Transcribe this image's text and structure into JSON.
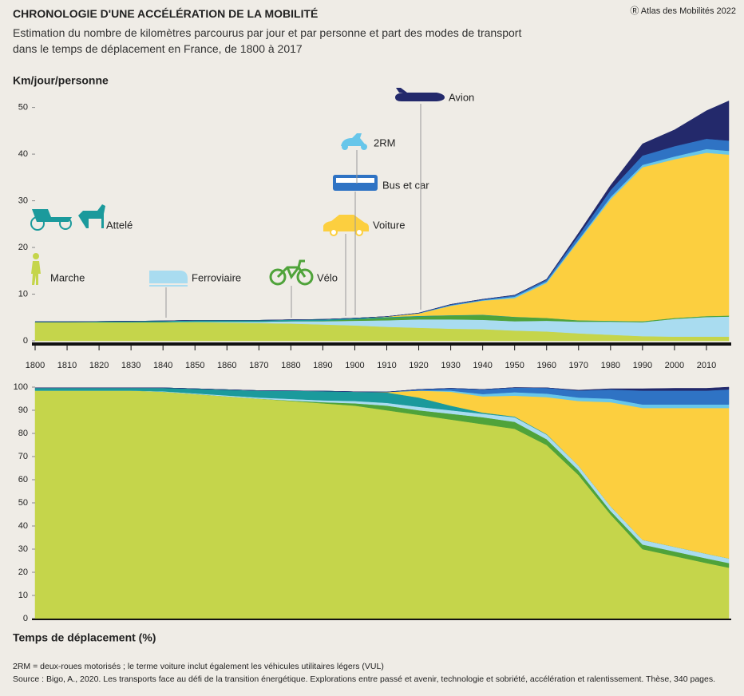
{
  "header": {
    "title": "CHRONOLOGIE D'UNE ACCÉLÉRATION DE LA MOBILITÉ",
    "subtitle": "Estimation du nombre de kilomètres parcourus par jour et par personne et part des modes de transport dans le temps de déplacement en France, de 1800 à 2017",
    "credit": "Atlas des Mobilités 2022"
  },
  "chart_data": [
    {
      "type": "stacked-area",
      "y_label": "Km/jour/personne",
      "x": [
        1800,
        1810,
        1820,
        1830,
        1840,
        1850,
        1860,
        1870,
        1880,
        1890,
        1900,
        1910,
        1920,
        1930,
        1940,
        1950,
        1960,
        1970,
        1980,
        1990,
        2000,
        2010,
        2017
      ],
      "xlim": [
        1800,
        2017
      ],
      "xticks": [
        1800,
        1810,
        1820,
        1830,
        1840,
        1850,
        1860,
        1870,
        1880,
        1890,
        1900,
        1910,
        1920,
        1930,
        1940,
        1950,
        1960,
        1970,
        1980,
        1990,
        2000,
        2010
      ],
      "ylim": [
        0,
        52.5
      ],
      "yticks": [
        0,
        10,
        20,
        30,
        40,
        50
      ],
      "series": [
        {
          "name": "Marche",
          "color": "#c5d54b",
          "values": [
            4,
            4,
            4,
            4,
            4,
            4,
            3.9,
            3.8,
            3.7,
            3.5,
            3.3,
            3.0,
            2.8,
            2.6,
            2.5,
            2.2,
            2.0,
            1.6,
            1.3,
            1.0,
            0.9,
            0.9,
            0.9
          ]
        },
        {
          "name": "Ferroviaire",
          "color": "#a9dcf0",
          "values": [
            0,
            0,
            0,
            0,
            0.02,
            0.1,
            0.2,
            0.3,
            0.5,
            0.7,
            1.0,
            1.4,
            1.8,
            2.0,
            2.0,
            2.0,
            2.3,
            2.5,
            2.8,
            3.0,
            3.8,
            4.2,
            4.3
          ]
        },
        {
          "name": "Vélo",
          "color": "#4fa33a",
          "values": [
            0,
            0,
            0,
            0,
            0,
            0,
            0,
            0,
            0.02,
            0.1,
            0.3,
            0.5,
            0.6,
            0.8,
            1.0,
            0.9,
            0.6,
            0.3,
            0.2,
            0.2,
            0.2,
            0.2,
            0.2
          ]
        },
        {
          "name": "Attelé",
          "color": "#1b9a9c",
          "values": [
            0.1,
            0.1,
            0.15,
            0.2,
            0.25,
            0.3,
            0.3,
            0.3,
            0.3,
            0.3,
            0.25,
            0.2,
            0.15,
            0.1,
            0.1,
            0.05,
            0,
            0,
            0,
            0,
            0,
            0,
            0
          ]
        },
        {
          "name": "Voiture",
          "color": "#fccf3f",
          "values": [
            0,
            0,
            0,
            0,
            0,
            0,
            0,
            0,
            0,
            0,
            0.01,
            0.1,
            0.5,
            2.0,
            3.0,
            4.0,
            7.5,
            17,
            26,
            33,
            34,
            35,
            34.5
          ]
        },
        {
          "name": "2RM",
          "color": "#67c6ea",
          "values": [
            0,
            0,
            0,
            0,
            0,
            0,
            0,
            0,
            0,
            0,
            0,
            0,
            0.05,
            0.1,
            0.1,
            0.3,
            0.3,
            0.3,
            0.5,
            0.5,
            0.6,
            0.8,
            0.8
          ]
        },
        {
          "name": "Bus et car",
          "color": "#2f73c4",
          "values": [
            0,
            0,
            0,
            0,
            0,
            0,
            0,
            0,
            0,
            0,
            0,
            0,
            0.05,
            0.2,
            0.2,
            0.3,
            0.4,
            0.9,
            1.5,
            2.0,
            2.2,
            2.2,
            2.2
          ]
        },
        {
          "name": "Avion",
          "color": "#23296b",
          "values": [
            0,
            0,
            0,
            0,
            0,
            0,
            0,
            0,
            0,
            0,
            0,
            0,
            0,
            0,
            0,
            0.05,
            0.1,
            0.5,
            1.0,
            2.5,
            3.5,
            6,
            8.5
          ]
        }
      ]
    },
    {
      "type": "stacked-area",
      "y_label": "Temps de déplacement (%)",
      "x": [
        1800,
        1810,
        1820,
        1830,
        1840,
        1850,
        1860,
        1870,
        1880,
        1890,
        1900,
        1910,
        1920,
        1930,
        1940,
        1950,
        1960,
        1970,
        1980,
        1990,
        2000,
        2010,
        2017
      ],
      "xlim": [
        1800,
        2017
      ],
      "ylim": [
        0,
        100
      ],
      "yticks": [
        0,
        10,
        20,
        30,
        40,
        50,
        60,
        70,
        80,
        90,
        100
      ],
      "series": [
        {
          "name": "Marche",
          "color": "#c5d54b",
          "values": [
            98.5,
            98.5,
            98.5,
            98.5,
            98,
            97,
            96,
            95,
            94,
            93,
            92,
            90,
            88,
            86,
            84,
            82,
            75,
            62,
            45,
            30,
            27,
            24,
            22
          ]
        },
        {
          "name": "Vélo",
          "color": "#4fa33a",
          "values": [
            0,
            0,
            0,
            0,
            0,
            0,
            0,
            0,
            0.2,
            0.5,
            1,
            2,
            2,
            2.5,
            3,
            3,
            2.5,
            2,
            1.5,
            2,
            2,
            2,
            2
          ]
        },
        {
          "name": "Ferroviaire",
          "color": "#a9dcf0",
          "values": [
            0,
            0,
            0,
            0,
            0.2,
            0.3,
            0.4,
            0.5,
            0.7,
            0.8,
            1,
            1.2,
            1.5,
            1.5,
            1.5,
            2,
            2,
            2,
            2,
            2,
            2,
            2,
            2
          ]
        },
        {
          "name": "Attelé",
          "color": "#1b9a9c",
          "values": [
            1.2,
            1.2,
            1.2,
            1.2,
            1.5,
            2,
            2.5,
            3,
            3.5,
            4,
            4,
            4.5,
            4,
            2,
            0.5,
            0.3,
            0.2,
            0,
            0,
            0,
            0,
            0,
            0
          ]
        },
        {
          "name": "Voiture",
          "color": "#fccf3f",
          "values": [
            0,
            0,
            0,
            0,
            0,
            0,
            0,
            0,
            0,
            0,
            0,
            0.2,
            3,
            6,
            7,
            9,
            16,
            28,
            45,
            57,
            60,
            63,
            65
          ]
        },
        {
          "name": "2RM",
          "color": "#67c6ea",
          "values": [
            0,
            0,
            0,
            0,
            0,
            0,
            0,
            0,
            0,
            0,
            0,
            0,
            0,
            0.5,
            1,
            1.5,
            1.5,
            1.5,
            1.5,
            1.5,
            1.5,
            1.5,
            1.5
          ]
        },
        {
          "name": "Bus et car",
          "color": "#2f73c4",
          "values": [
            0,
            0,
            0,
            0,
            0,
            0,
            0,
            0,
            0,
            0,
            0,
            0,
            0.5,
            1,
            2,
            2,
            2.5,
            3,
            4,
            6,
            6,
            6,
            6.5
          ]
        },
        {
          "name": "Avion",
          "color": "#23296b",
          "values": [
            0,
            0,
            0,
            0,
            0,
            0,
            0,
            0,
            0,
            0,
            0,
            0,
            0,
            0,
            0,
            0,
            0,
            0.2,
            0.3,
            0.8,
            1,
            1,
            1
          ]
        }
      ]
    }
  ],
  "footer": {
    "note": "2RM = deux-roues motorisés ; le terme voiture inclut également les véhicules utilitaires légers (VUL)",
    "source": "Source : Bigo, A., 2020. Les transports face au défi de la transition énergétique. Explorations entre passé et avenir, technologie et sobriété, accélération et ralentissement. Thèse, 340 pages."
  }
}
